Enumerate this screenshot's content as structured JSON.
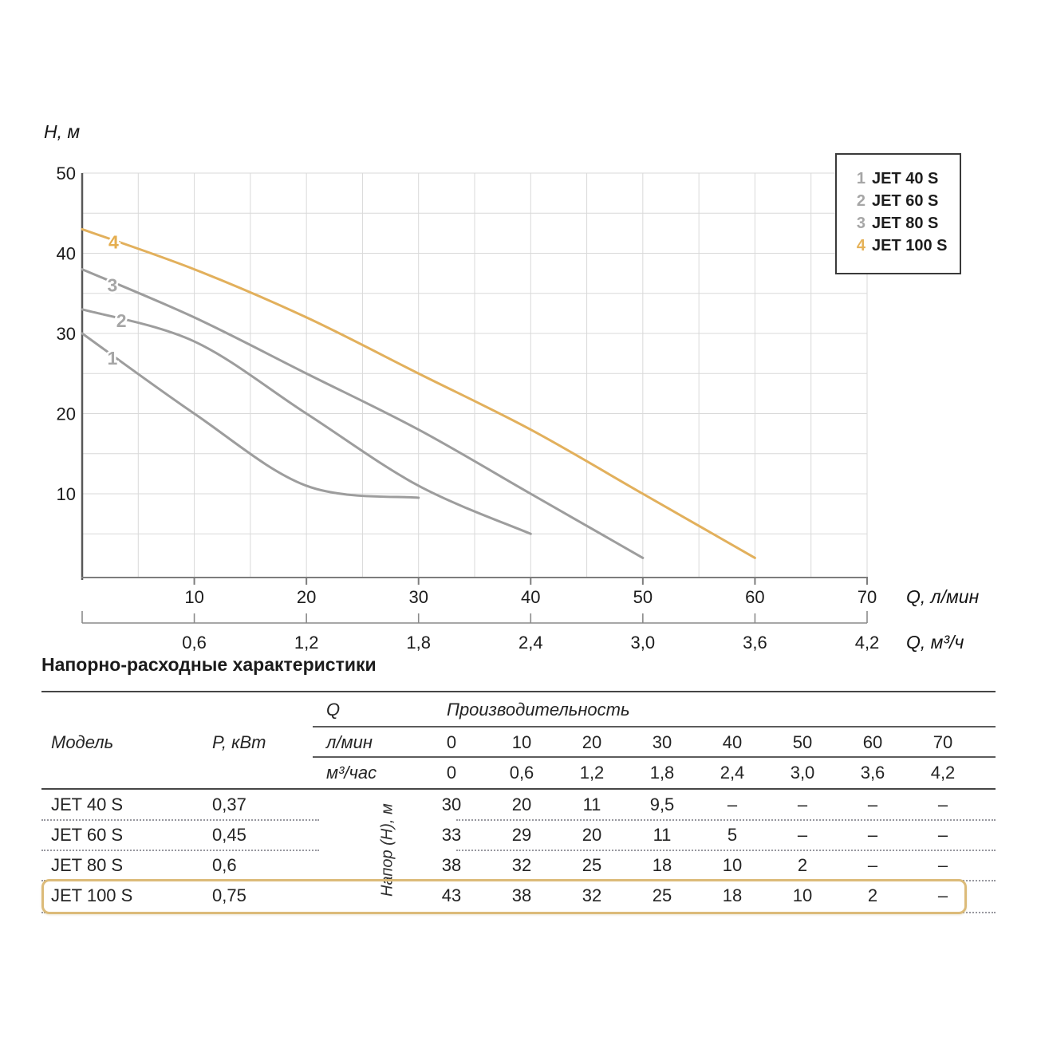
{
  "chart": {
    "y_axis_title": "Н, м",
    "x_axis_title_primary": "Q, л/мин",
    "x_axis_title_secondary": "Q, м³/ч",
    "legend": [
      {
        "num": "1",
        "label": "JET 40 S",
        "color": "#a6a6a6"
      },
      {
        "num": "2",
        "label": "JET 60 S",
        "color": "#a6a6a6"
      },
      {
        "num": "3",
        "label": "JET 80 S",
        "color": "#a6a6a6"
      },
      {
        "num": "4",
        "label": "JET 100 S",
        "color": "#e6b257"
      }
    ]
  },
  "chart_data": {
    "type": "line",
    "xlim": [
      0,
      70
    ],
    "ylim": [
      0,
      50
    ],
    "grid_step_x": 5,
    "grid_step_y": 5,
    "grid": true,
    "x_ticks_lmin": [
      10,
      20,
      30,
      40,
      50,
      60,
      70
    ],
    "x_ticks_m3h": [
      "0,6",
      "1,2",
      "1,8",
      "2,4",
      "3,0",
      "3,6",
      "4,2"
    ],
    "y_ticks": [
      10,
      20,
      30,
      40,
      50
    ],
    "xlabel_primary": "Q, л/мин",
    "xlabel_secondary": "Q, м³/ч",
    "ylabel": "Н, м",
    "legend_position": "top-right",
    "series": [
      {
        "name": "JET 40 S",
        "curve_label": "1",
        "color": "#9d9d9d",
        "points": [
          [
            0,
            30
          ],
          [
            10,
            20
          ],
          [
            20,
            11
          ],
          [
            30,
            9.5
          ]
        ]
      },
      {
        "name": "JET 60 S",
        "curve_label": "2",
        "color": "#9d9d9d",
        "points": [
          [
            0,
            33
          ],
          [
            10,
            29
          ],
          [
            20,
            20
          ],
          [
            30,
            11
          ],
          [
            40,
            5
          ]
        ]
      },
      {
        "name": "JET 80 S",
        "curve_label": "3",
        "color": "#9d9d9d",
        "points": [
          [
            0,
            38
          ],
          [
            10,
            32
          ],
          [
            20,
            25
          ],
          [
            30,
            18
          ],
          [
            40,
            10
          ],
          [
            50,
            2
          ]
        ]
      },
      {
        "name": "JET 100 S",
        "curve_label": "4",
        "color": "#e2b05c",
        "points": [
          [
            0,
            43
          ],
          [
            10,
            38
          ],
          [
            20,
            32
          ],
          [
            30,
            25
          ],
          [
            40,
            18
          ],
          [
            50,
            10
          ],
          [
            60,
            2
          ]
        ]
      }
    ],
    "curve_labels": [
      {
        "text": "1",
        "q": 2.7,
        "h": 26.9,
        "color": "#a6a6a6"
      },
      {
        "text": "2",
        "q": 3.5,
        "h": 31.6,
        "color": "#a6a6a6"
      },
      {
        "text": "3",
        "q": 2.7,
        "h": 36.0,
        "color": "#a6a6a6"
      },
      {
        "text": "4",
        "q": 2.8,
        "h": 41.4,
        "color": "#e5ae4f"
      }
    ]
  },
  "table": {
    "title": "Напорно-расходные характеристики",
    "header": {
      "model": "Модель",
      "power": "P, кВт",
      "q": "Q",
      "performance": "Производительность",
      "lmin_label": "л/мин",
      "lmin_values": [
        "0",
        "10",
        "20",
        "30",
        "40",
        "50",
        "60",
        "70"
      ],
      "m3h_label": "м³/час",
      "m3h_values": [
        "0",
        "0,6",
        "1,2",
        "1,8",
        "2,4",
        "3,0",
        "3,6",
        "4,2"
      ]
    },
    "vertical_label": "Напор (Н), м",
    "highlight_color": "#dcbb79",
    "rows": [
      {
        "model": "JET 40 S",
        "power": "0,37",
        "values": [
          "30",
          "20",
          "11",
          "9,5",
          "–",
          "–",
          "–",
          "–"
        ]
      },
      {
        "model": "JET 60 S",
        "power": "0,45",
        "values": [
          "33",
          "29",
          "20",
          "11",
          "5",
          "–",
          "–",
          "–"
        ]
      },
      {
        "model": "JET 80 S",
        "power": "0,6",
        "values": [
          "38",
          "32",
          "25",
          "18",
          "10",
          "2",
          "–",
          "–"
        ]
      },
      {
        "model": "JET 100 S",
        "power": "0,75",
        "values": [
          "43",
          "38",
          "32",
          "25",
          "18",
          "10",
          "2",
          "–"
        ]
      }
    ]
  }
}
